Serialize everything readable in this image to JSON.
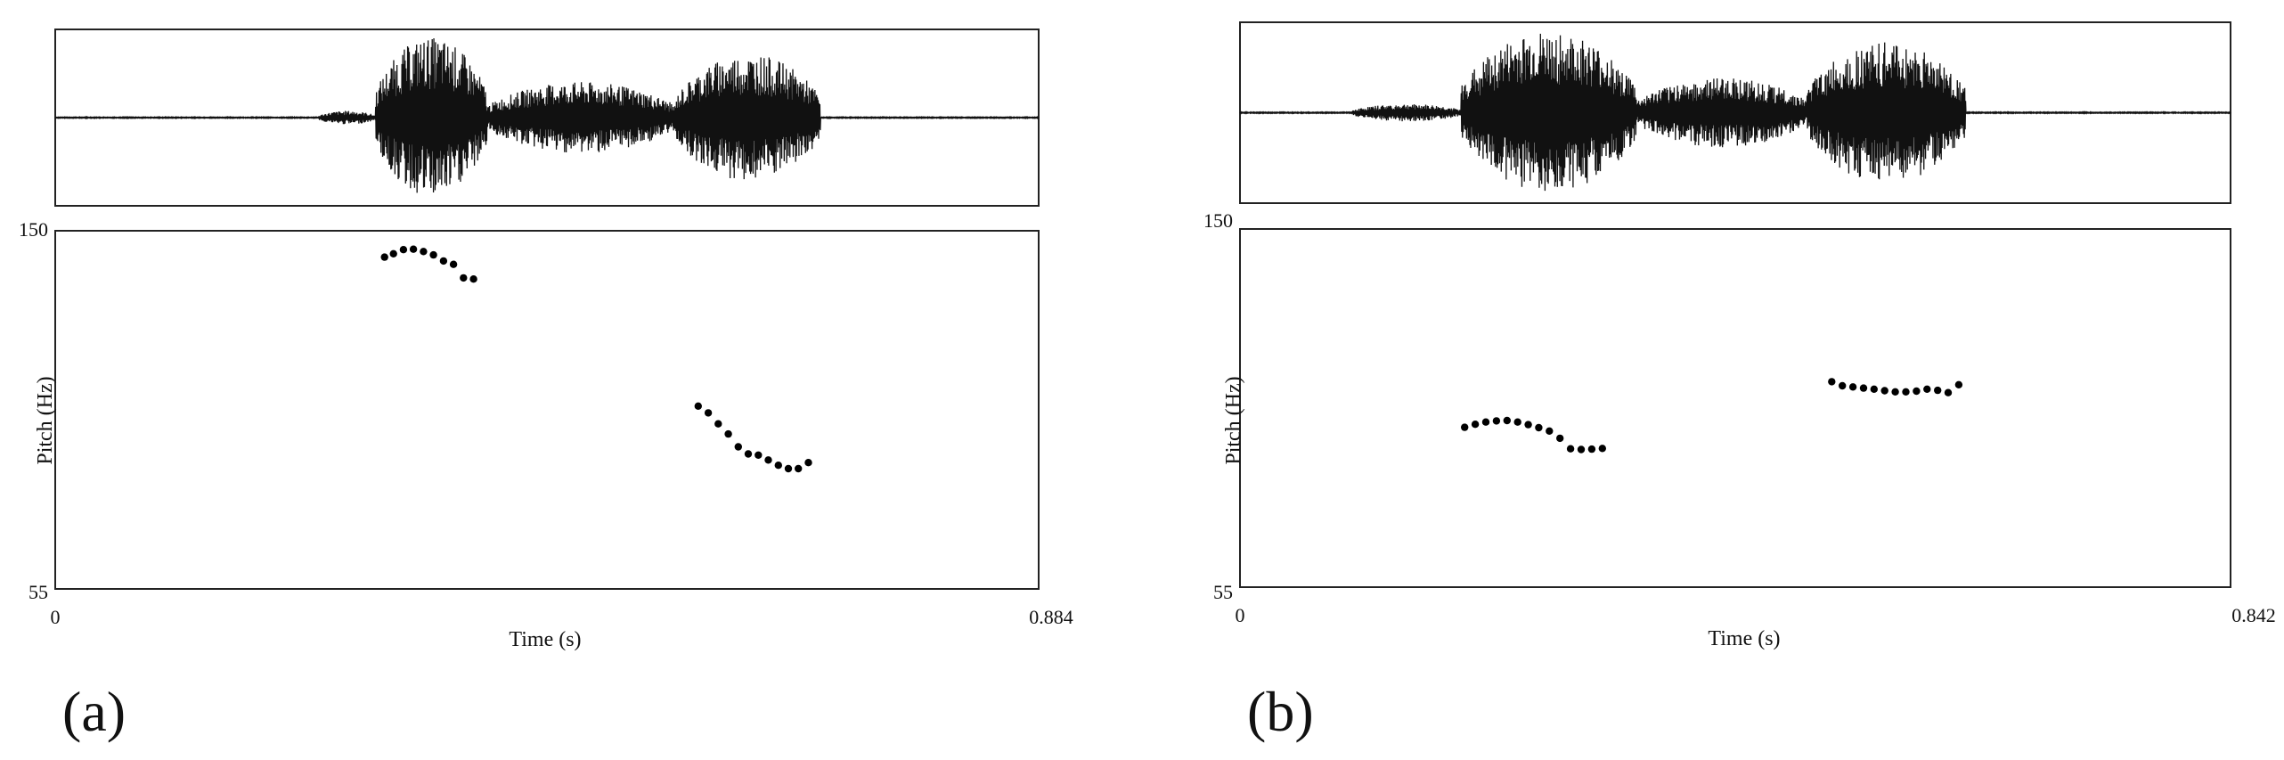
{
  "panels": [
    {
      "label": "(a)",
      "xlabel": "Time (s)",
      "ylabel": "Pitch (Hz)",
      "x_min_label": "0",
      "x_max_label": "0.884",
      "y_min_label": "55",
      "y_max_label": "150"
    },
    {
      "label": "(b)",
      "xlabel": "Time (s)",
      "ylabel": "Pitch (Hz)",
      "x_min_label": "0",
      "x_max_label": "0.842",
      "y_min_label": "55",
      "y_max_label": "150"
    }
  ],
  "chart_data": [
    {
      "type": "scatter",
      "xlabel": "Time (s)",
      "ylabel": "Pitch (Hz)",
      "xlim": [
        0,
        0.884
      ],
      "ylim": [
        55,
        150
      ],
      "grid": false,
      "waveform_segments": [
        {
          "start": 0.237,
          "end": 0.288,
          "amplitude": 0.08
        },
        {
          "start": 0.288,
          "end": 0.388,
          "amplitude": 0.95
        },
        {
          "start": 0.388,
          "end": 0.558,
          "amplitude": 0.42
        },
        {
          "start": 0.558,
          "end": 0.688,
          "amplitude": 0.75
        }
      ],
      "series": [
        {
          "points": [
            {
              "x": 0.296,
              "y": 143.0
            },
            {
              "x": 0.304,
              "y": 143.9
            },
            {
              "x": 0.313,
              "y": 145.0
            },
            {
              "x": 0.322,
              "y": 145.1
            },
            {
              "x": 0.331,
              "y": 144.5
            },
            {
              "x": 0.34,
              "y": 143.6
            },
            {
              "x": 0.349,
              "y": 142.0
            },
            {
              "x": 0.358,
              "y": 141.1
            },
            {
              "x": 0.367,
              "y": 137.5
            },
            {
              "x": 0.376,
              "y": 137.2
            },
            {
              "x": 0.578,
              "y": 103.5
            },
            {
              "x": 0.587,
              "y": 101.7
            },
            {
              "x": 0.596,
              "y": 98.8
            },
            {
              "x": 0.605,
              "y": 96.1
            },
            {
              "x": 0.614,
              "y": 92.7
            },
            {
              "x": 0.623,
              "y": 90.8
            },
            {
              "x": 0.632,
              "y": 90.5
            },
            {
              "x": 0.641,
              "y": 89.2
            },
            {
              "x": 0.65,
              "y": 87.8
            },
            {
              "x": 0.659,
              "y": 86.9
            },
            {
              "x": 0.668,
              "y": 86.9
            },
            {
              "x": 0.677,
              "y": 88.5
            }
          ]
        }
      ]
    },
    {
      "type": "scatter",
      "xlabel": "Time (s)",
      "ylabel": "Pitch (Hz)",
      "xlim": [
        0,
        0.842
      ],
      "ylim": [
        55,
        150
      ],
      "grid": false,
      "waveform_segments": [
        {
          "start": 0.096,
          "end": 0.188,
          "amplitude": 0.1
        },
        {
          "start": 0.188,
          "end": 0.337,
          "amplitude": 0.92
        },
        {
          "start": 0.337,
          "end": 0.482,
          "amplitude": 0.4
        },
        {
          "start": 0.482,
          "end": 0.617,
          "amplitude": 0.82
        }
      ],
      "series": [
        {
          "points": [
            {
              "x": 0.191,
              "y": 97.4
            },
            {
              "x": 0.2,
              "y": 98.2
            },
            {
              "x": 0.209,
              "y": 98.8
            },
            {
              "x": 0.218,
              "y": 99.1
            },
            {
              "x": 0.227,
              "y": 99.2
            },
            {
              "x": 0.236,
              "y": 98.8
            },
            {
              "x": 0.245,
              "y": 98.1
            },
            {
              "x": 0.254,
              "y": 97.3
            },
            {
              "x": 0.263,
              "y": 96.4
            },
            {
              "x": 0.272,
              "y": 94.5
            },
            {
              "x": 0.281,
              "y": 91.7
            },
            {
              "x": 0.29,
              "y": 91.5
            },
            {
              "x": 0.299,
              "y": 91.6
            },
            {
              "x": 0.308,
              "y": 91.8
            },
            {
              "x": 0.503,
              "y": 109.5
            },
            {
              "x": 0.512,
              "y": 108.4
            },
            {
              "x": 0.521,
              "y": 108.1
            },
            {
              "x": 0.53,
              "y": 107.8
            },
            {
              "x": 0.539,
              "y": 107.5
            },
            {
              "x": 0.548,
              "y": 107.1
            },
            {
              "x": 0.557,
              "y": 106.8
            },
            {
              "x": 0.566,
              "y": 106.8
            },
            {
              "x": 0.575,
              "y": 107.0
            },
            {
              "x": 0.584,
              "y": 107.5
            },
            {
              "x": 0.593,
              "y": 107.2
            },
            {
              "x": 0.602,
              "y": 106.6
            },
            {
              "x": 0.611,
              "y": 108.7
            }
          ]
        }
      ]
    }
  ]
}
